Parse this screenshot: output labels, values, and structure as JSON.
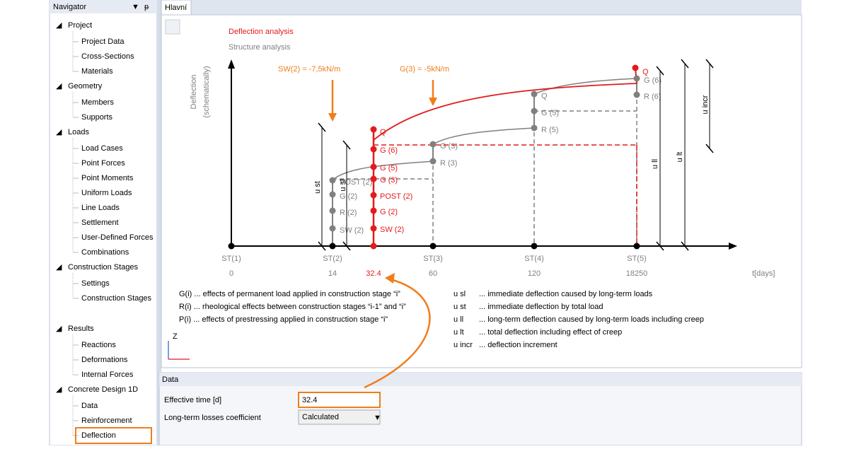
{
  "navigator": {
    "title": "Navigator",
    "groups": [
      {
        "label": "Project",
        "children": [
          "Project Data",
          "Cross-Sections",
          "Materials"
        ]
      },
      {
        "label": "Geometry",
        "children": [
          "Members",
          "Supports"
        ]
      },
      {
        "label": "Loads",
        "children": [
          "Load Cases",
          "Point Forces",
          "Point Moments",
          "Uniform Loads",
          "Line Loads",
          "Settlement",
          "User-Defined Forces",
          "Combinations"
        ]
      },
      {
        "label": "Construction Stages",
        "children": [
          "Settings",
          "Construction Stages"
        ]
      },
      {
        "label": "Results",
        "children": [
          "Reactions",
          "Deformations",
          "Internal Forces"
        ]
      },
      {
        "label": "Concrete Design 1D",
        "children": [
          "Data",
          "Reinforcement",
          "Deflection"
        ]
      }
    ]
  },
  "tab": "Hlavní",
  "diagram": {
    "title": "Deflection analysis",
    "subtitle": "Structure analysis",
    "y_label": [
      "Deflection",
      "(schematically)"
    ],
    "loads": [
      "SW(2) = -7,5kN/m",
      "G(3) = -5kN/m"
    ],
    "stages": [
      {
        "label": "ST(1)",
        "time": "0"
      },
      {
        "label": "ST(2)",
        "time": "14"
      },
      {
        "label": "ST(3)",
        "time": "60"
      },
      {
        "label": "ST(4)",
        "time": "120"
      },
      {
        "label": "ST(5)",
        "time": "18250"
      }
    ],
    "x_label": "t[days]",
    "highlight_time": "32.4",
    "red_points": [
      "SW (2)",
      "G (2)",
      "POST (2)",
      "G (3)",
      "G (5)",
      "G (6)",
      "Q"
    ],
    "red_top": "Q",
    "gray_points": [
      [
        "SW (2)",
        "R (2)",
        "G (2)",
        "POST (2)"
      ],
      [
        "R (3)",
        "G (3)"
      ],
      [
        "R (5)",
        "G (5)",
        "Q"
      ],
      [
        "R (6)",
        "G (6)"
      ]
    ],
    "dimensions": [
      "u st",
      "u sl",
      "u ll",
      "u lt",
      "u incr"
    ],
    "legend_left": [
      "G(i) ... effects of permanent load applied in construction stage “i”",
      "R(i) ... rheological effects between construction stages “i-1” and “i”",
      "P(i) ... effects of prestressing applied in construction stage “i”"
    ],
    "legend_right": [
      {
        "key": "u sl",
        "text": "... immediate deflection caused by long-term loads"
      },
      {
        "key": "u st",
        "text": "... immediate deflection by total load"
      },
      {
        "key": "u ll",
        "text": "... long-term deflection caused by long-term loads including creep"
      },
      {
        "key": "u lt",
        "text": "... total deflection including effect of creep"
      },
      {
        "key": "u incr",
        "text": "... deflection increment"
      }
    ],
    "axis_icon": "Z"
  },
  "data_panel": {
    "title": "Data",
    "fields": [
      {
        "label": "Effective time [d]",
        "value": "32.4"
      },
      {
        "label": "Long-term losses coefficient",
        "value": "Calculated"
      }
    ]
  }
}
